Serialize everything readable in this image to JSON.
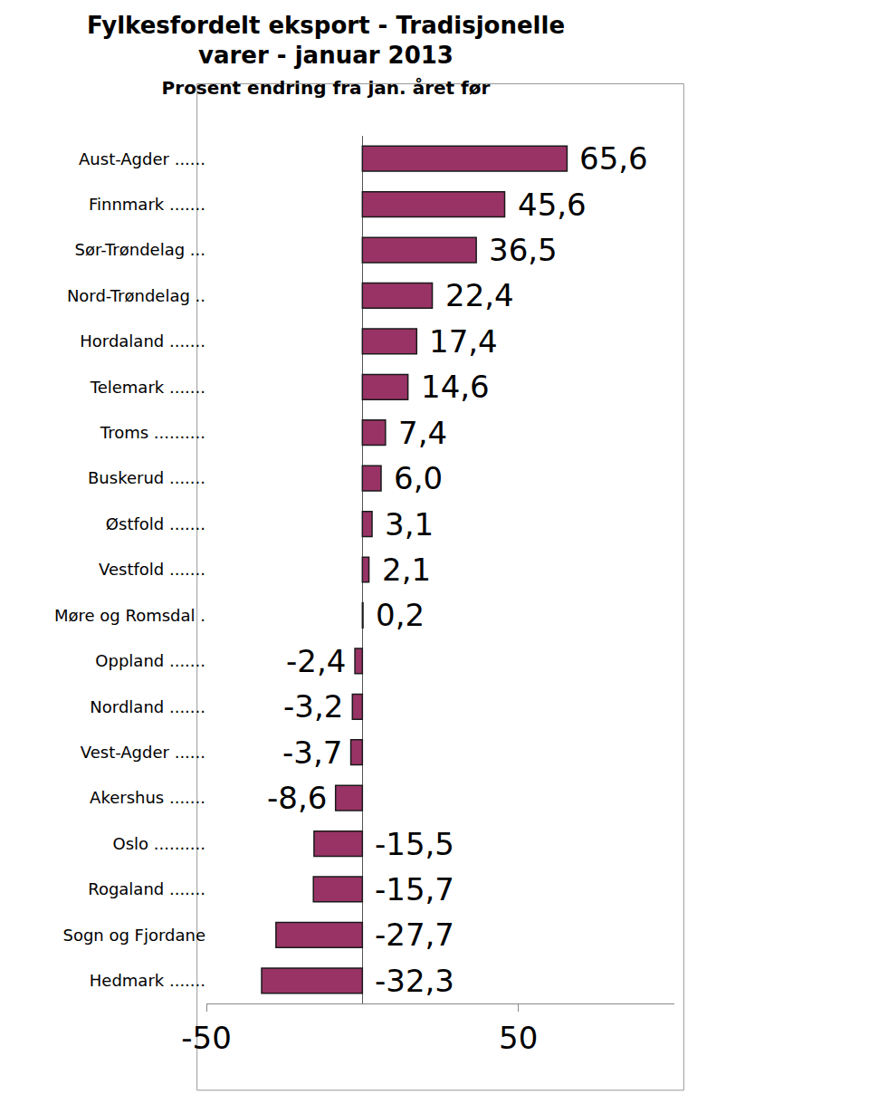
{
  "chart_data": {
    "type": "bar",
    "orientation": "horizontal",
    "title": "Fylkesfordelt eksport - Tradisjonelle varer - januar 2013",
    "subtitle": "Prosent endring fra jan. året før",
    "categories": [
      "Aust-Agder ......",
      "Finnmark .......",
      "Sør-Trøndelag ...",
      "Nord-Trøndelag ..",
      "Hordaland .......",
      "Telemark .......",
      "Troms ..........",
      "Buskerud .......",
      "Østfold .......",
      "Vestfold .......",
      "Møre og Romsdal .",
      "Oppland .......",
      "Nordland .......",
      "Vest-Agder ......",
      "Akershus .......",
      "Oslo ..........",
      "Rogaland .......",
      "Sogn og Fjordane",
      "Hedmark ......."
    ],
    "values": [
      65.6,
      45.6,
      36.5,
      22.4,
      17.4,
      14.6,
      7.4,
      6.0,
      3.1,
      2.1,
      0.2,
      -2.4,
      -3.2,
      -3.7,
      -8.6,
      -15.5,
      -15.7,
      -27.7,
      -32.3
    ],
    "value_labels": [
      "65,6",
      "45,6",
      "36,5",
      "22,4",
      "17,4",
      "14,6",
      "7,4",
      "6,0",
      "3,1",
      "2,1",
      "0,2",
      "-2,4",
      "-3,2",
      "-3,7",
      "-8,6",
      "-15,5",
      "-15,7",
      "-27,7",
      "-32,3"
    ],
    "color": "#993366",
    "data_labels": true,
    "xlim": [
      -50,
      100
    ],
    "xticks": [
      -50,
      50
    ],
    "grid": false
  }
}
